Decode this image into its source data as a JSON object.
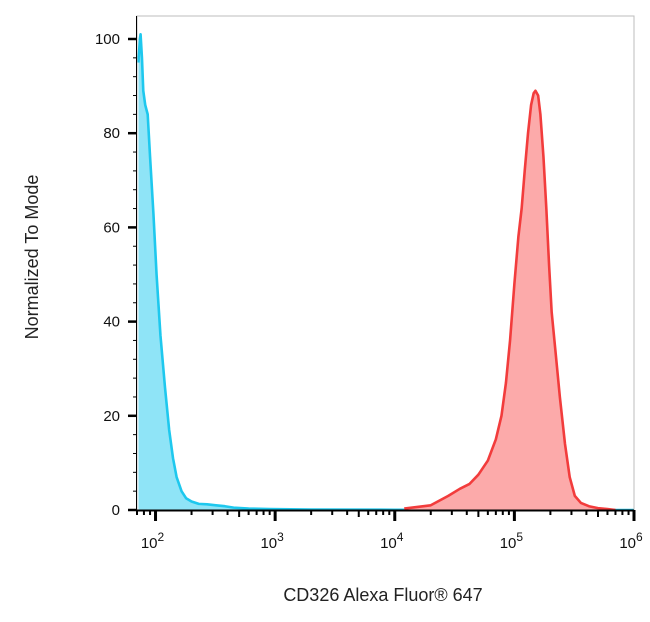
{
  "chart_data": {
    "type": "area",
    "title": "",
    "xlabel": "CD326 Alexa Fluor® 647",
    "ylabel": "Normalized To Mode",
    "x_scale": "log",
    "xlim": [
      70,
      1000000
    ],
    "ylim": [
      0,
      100
    ],
    "grid": false,
    "x_ticks": [
      {
        "value": 100,
        "base": "10",
        "exp": "2"
      },
      {
        "value": 1000,
        "base": "10",
        "exp": "3"
      },
      {
        "value": 10000,
        "base": "10",
        "exp": "4"
      },
      {
        "value": 100000,
        "base": "10",
        "exp": "5"
      },
      {
        "value": 1000000,
        "base": "10",
        "exp": "6"
      }
    ],
    "y_ticks": [
      {
        "value": 0,
        "label": "0"
      },
      {
        "value": 20,
        "label": "20"
      },
      {
        "value": 40,
        "label": "40"
      },
      {
        "value": 60,
        "label": "60"
      },
      {
        "value": 80,
        "label": "80"
      },
      {
        "value": 100,
        "label": "100"
      }
    ],
    "series": [
      {
        "color": "#1ec8ee",
        "fill": "#8fe4f7",
        "points": [
          [
            72,
            95
          ],
          [
            74,
            100
          ],
          [
            75,
            101
          ],
          [
            77,
            96
          ],
          [
            79,
            89
          ],
          [
            82,
            86
          ],
          [
            86,
            84
          ],
          [
            90,
            75
          ],
          [
            96,
            63
          ],
          [
            102,
            50
          ],
          [
            110,
            37
          ],
          [
            120,
            26
          ],
          [
            130,
            17
          ],
          [
            140,
            11
          ],
          [
            150,
            7
          ],
          [
            165,
            4
          ],
          [
            180,
            2.5
          ],
          [
            200,
            1.8
          ],
          [
            230,
            1.3
          ],
          [
            270,
            1.2
          ],
          [
            320,
            1.0
          ],
          [
            380,
            0.8
          ],
          [
            450,
            0.5
          ],
          [
            600,
            0.3
          ],
          [
            900,
            0.2
          ],
          [
            2000,
            0.1
          ],
          [
            10000,
            0.05
          ],
          [
            40000,
            0
          ],
          [
            100000,
            0
          ],
          [
            1000000,
            0
          ]
        ]
      },
      {
        "color": "#f23c3c",
        "fill": "#fcaaaa",
        "points": [
          [
            12000,
            0.3
          ],
          [
            20000,
            1
          ],
          [
            28000,
            3
          ],
          [
            35000,
            4.5
          ],
          [
            42000,
            5.5
          ],
          [
            50000,
            7.5
          ],
          [
            60000,
            10.5
          ],
          [
            70000,
            15
          ],
          [
            78000,
            20
          ],
          [
            85000,
            27
          ],
          [
            92000,
            36
          ],
          [
            100000,
            48
          ],
          [
            108000,
            58
          ],
          [
            115000,
            64
          ],
          [
            122000,
            72
          ],
          [
            130000,
            80
          ],
          [
            138000,
            86
          ],
          [
            145000,
            88.5
          ],
          [
            150000,
            89
          ],
          [
            158000,
            88
          ],
          [
            165000,
            84
          ],
          [
            175000,
            75
          ],
          [
            185000,
            64
          ],
          [
            195000,
            52
          ],
          [
            205000,
            42
          ],
          [
            220000,
            34
          ],
          [
            240000,
            24
          ],
          [
            265000,
            14
          ],
          [
            290000,
            7
          ],
          [
            320000,
            3
          ],
          [
            360000,
            1.5
          ],
          [
            420000,
            0.8
          ],
          [
            500000,
            0.4
          ],
          [
            600000,
            0.2
          ],
          [
            700000,
            0
          ]
        ]
      }
    ]
  }
}
